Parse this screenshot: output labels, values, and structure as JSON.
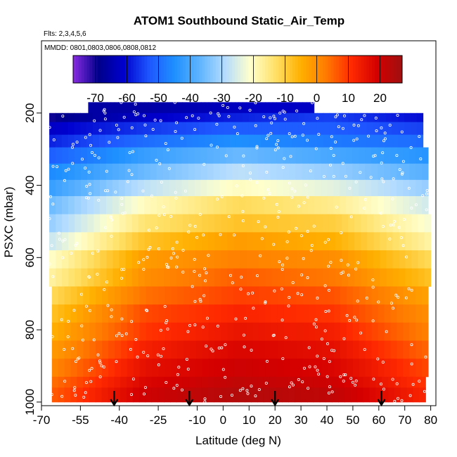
{
  "chart_data": {
    "type": "heatmap",
    "title": "ATOM1 Southbound Static_Air_Temp",
    "subtitle_flights": "Flts: 2,3,4,5,6",
    "subtitle_dates": "MMDD: 0801,0803,0806,0808,0812",
    "xlabel": "Latitude (deg N)",
    "ylabel": "PSXC (mbar)",
    "xlim": [
      -70,
      82
    ],
    "ylim": [
      1010,
      0
    ],
    "x_ticks": [
      -70,
      -55,
      -40,
      -25,
      -10,
      0,
      10,
      20,
      30,
      40,
      50,
      60,
      70,
      80
    ],
    "x_tick_labels": [
      "-70",
      "-55",
      "-40",
      "-25",
      "-10",
      "0",
      "10",
      "20",
      "30",
      "40",
      "50",
      "60",
      "70",
      "80"
    ],
    "y_ticks": [
      200,
      400,
      600,
      800,
      1000
    ],
    "y_tick_labels": [
      "200",
      "400",
      "600",
      "800",
      "1000"
    ],
    "colorbar": {
      "range": [
        -77,
        27
      ],
      "ticks": [
        -70,
        -60,
        -50,
        -40,
        -30,
        -20,
        -10,
        0,
        10,
        20
      ],
      "tick_labels": [
        "-70",
        "-60",
        "-50",
        "-40",
        "-30",
        "-20",
        "-10",
        "0",
        "10",
        "20"
      ],
      "colors": [
        "#8a2be2",
        "#00008b",
        "#0000cd",
        "#1e56ff",
        "#1e90ff",
        "#5fb4ff",
        "#b4dcff",
        "#ffffcc",
        "#ffe066",
        "#ffb000",
        "#ff7a00",
        "#ff2a00",
        "#d40000",
        "#a01010"
      ]
    },
    "pressure_bands": [
      {
        "p_top": 170,
        "p_bottom": 200,
        "lat_min": -52,
        "lat_max": 35,
        "temp_profile": [
          -66,
          -66,
          -64,
          -62,
          -62
        ]
      },
      {
        "p_top": 200,
        "p_bottom": 225,
        "lat_min": -67,
        "lat_max": 77,
        "temp_profile": [
          -70,
          -62,
          -58,
          -55,
          -60
        ]
      },
      {
        "p_top": 225,
        "p_bottom": 260,
        "lat_min": -67,
        "lat_max": 77,
        "temp_profile": [
          -62,
          -56,
          -52,
          -52,
          -55
        ]
      },
      {
        "p_top": 260,
        "p_bottom": 295,
        "lat_min": -67,
        "lat_max": 77,
        "temp_profile": [
          -58,
          -50,
          -45,
          -48,
          -50
        ]
      },
      {
        "p_top": 295,
        "p_bottom": 340,
        "lat_min": -67,
        "lat_max": 79,
        "temp_profile": [
          -52,
          -42,
          -36,
          -40,
          -44
        ]
      },
      {
        "p_top": 340,
        "p_bottom": 385,
        "lat_min": -67,
        "lat_max": 79,
        "temp_profile": [
          -46,
          -36,
          -28,
          -32,
          -38
        ]
      },
      {
        "p_top": 385,
        "p_bottom": 430,
        "lat_min": -67,
        "lat_max": 79,
        "temp_profile": [
          -42,
          -28,
          -20,
          -24,
          -32
        ]
      },
      {
        "p_top": 430,
        "p_bottom": 480,
        "lat_min": -67,
        "lat_max": 79,
        "temp_profile": [
          -36,
          -20,
          -12,
          -16,
          -26
        ]
      },
      {
        "p_top": 480,
        "p_bottom": 530,
        "lat_min": -67,
        "lat_max": 80,
        "temp_profile": [
          -32,
          -14,
          -8,
          -10,
          -22
        ]
      },
      {
        "p_top": 530,
        "p_bottom": 580,
        "lat_min": -67,
        "lat_max": 80,
        "temp_profile": [
          -27,
          -8,
          -2,
          -5,
          -18
        ]
      },
      {
        "p_top": 580,
        "p_bottom": 630,
        "lat_min": -67,
        "lat_max": 80,
        "temp_profile": [
          -21,
          -2,
          2,
          0,
          -12
        ]
      },
      {
        "p_top": 630,
        "p_bottom": 680,
        "lat_min": -67,
        "lat_max": 80,
        "temp_profile": [
          -18,
          0,
          6,
          3,
          -8
        ]
      },
      {
        "p_top": 680,
        "p_bottom": 730,
        "lat_min": -66,
        "lat_max": 79,
        "temp_profile": [
          -12,
          4,
          9,
          7,
          -3
        ]
      },
      {
        "p_top": 730,
        "p_bottom": 780,
        "lat_min": -66,
        "lat_max": 79,
        "temp_profile": [
          -8,
          8,
          12,
          10,
          0
        ]
      },
      {
        "p_top": 780,
        "p_bottom": 830,
        "lat_min": -66,
        "lat_max": 79,
        "temp_profile": [
          -5,
          10,
          15,
          13,
          2
        ]
      },
      {
        "p_top": 830,
        "p_bottom": 880,
        "lat_min": -66,
        "lat_max": 79,
        "temp_profile": [
          -2,
          13,
          18,
          16,
          5
        ]
      },
      {
        "p_top": 880,
        "p_bottom": 930,
        "lat_min": -66,
        "lat_max": 79,
        "temp_profile": [
          1,
          16,
          20,
          18,
          8
        ]
      },
      {
        "p_top": 930,
        "p_bottom": 960,
        "lat_min": -66,
        "lat_max": 78,
        "temp_profile": [
          4,
          18,
          22,
          20,
          10
        ]
      },
      {
        "p_top": 960,
        "p_bottom": 1000,
        "lat_min": -66,
        "lat_max": 78,
        "temp_profile": [
          6,
          20,
          24,
          22,
          12
        ]
      }
    ],
    "arrows_latitude": [
      -42,
      -13,
      20,
      61
    ]
  }
}
